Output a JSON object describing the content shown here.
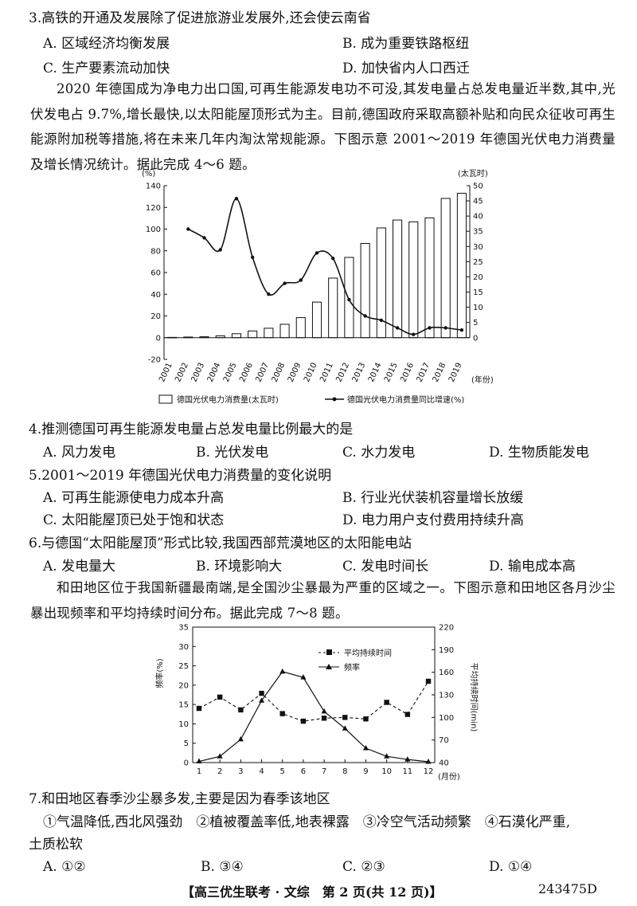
{
  "q3": {
    "stem": "3.高铁的开通及发展除了促进旅游业发展外,还会使云南省",
    "a": "A. 区域经济均衡发展",
    "b": "B. 成为重要铁路枢纽",
    "c": "C. 生产要素流动加快",
    "d": "D. 加快省内人口西迁"
  },
  "passage1": "2020 年德国成为净电力出口国,可再生能源发电功不可没,其发电量占总发电量近半数,其中,光伏发电占 9.7%,增长最快,以太阳能屋顶形式为主。目前,德国政府采取高额补贴和向民众征收可再生能源附加税等措施,将在未来几年内淘汰常规能源。下图示意 2001～2019 年德国光伏电力消费量及增长情况统计。据此完成 4～6 题。",
  "chart1": {
    "left_unit": "(%)",
    "right_unit": "(太瓦时)",
    "x_unit": "(年份)",
    "legend_bar": "德国光伏电力消费量(太瓦时)",
    "legend_line": "德国光伏电力消费量同比增速(%)"
  },
  "q4": {
    "stem": "4.推测德国可再生能源发电量占总发电量比例最大的是",
    "a": "A. 风力发电",
    "b": "B. 光伏发电",
    "c": "C. 水力发电",
    "d": "D. 生物质能发电"
  },
  "q5": {
    "stem": "5.2001～2019 年德国光伏电力消费量的变化说明",
    "a": "A. 可再生能源使电力成本升高",
    "b": "B. 行业光伏装机容量增长放缓",
    "c": "C. 太阳能屋顶已处于饱和状态",
    "d": "D. 电力用户支付费用持续升高"
  },
  "q6": {
    "stem": "6.与德国“太阳能屋顶”形式比较,我国西部荒漠地区的太阳能电站",
    "a": "A. 发电量大",
    "b": "B. 环境影响大",
    "c": "C. 发电时间长",
    "d": "D. 输电成本高"
  },
  "passage2": "和田地区位于我国新疆最南端,是全国沙尘暴最为严重的区域之一。下图示意和田地区各月沙尘暴出现频率和平均持续时间分布。据此完成 7～8 题。",
  "chart2": {
    "left_label": "频率(%)",
    "right_label": "平均持续时间(min)",
    "x_unit": "(月份)",
    "legend_duration": "平均持续时间",
    "legend_freq": "频率"
  },
  "q7": {
    "stem": "7.和田地区春季沙尘暴多发,主要是因为春季该地区",
    "options_line1": "①气温降低,西北风强劲　②植被覆盖率低,地表裸露　③冷空气活动频繁　④石漠化严重,",
    "options_line2": "土质松软",
    "a": "A. ①②",
    "b": "B. ③④",
    "c": "C. ②③",
    "d": "D. ①④"
  },
  "footer": {
    "center": "【高三优生联考 · 文综　第 2 页(共 12 页)】",
    "code": "243475D"
  },
  "chart_data": [
    {
      "type": "bar+line",
      "x": [
        "2001",
        "2002",
        "2003",
        "2004",
        "2005",
        "2006",
        "2007",
        "2008",
        "2009",
        "2010",
        "2011",
        "2012",
        "2013",
        "2014",
        "2015",
        "2016",
        "2017",
        "2018",
        "2019"
      ],
      "series": [
        {
          "name": "德国光伏电力消费量(太瓦时)",
          "type": "bar",
          "axis": "right",
          "values": [
            0.1,
            0.2,
            0.3,
            0.6,
            1.3,
            2.2,
            3.1,
            4.4,
            6.6,
            11.7,
            19.6,
            26.4,
            31.0,
            36.1,
            38.7,
            38.1,
            39.4,
            45.8,
            47.5
          ]
        },
        {
          "name": "德国光伏电力消费量同比增速(%)",
          "type": "line",
          "axis": "left",
          "values": [
            null,
            100,
            92,
            81,
            128,
            74,
            40,
            50,
            53,
            78,
            73,
            35,
            20,
            16,
            9,
            3,
            9,
            9,
            7
          ]
        }
      ],
      "left_axis": {
        "unit": "(%)",
        "ticks": [
          -20,
          0,
          20,
          40,
          60,
          80,
          100,
          120,
          140
        ],
        "range": [
          -20,
          140
        ]
      },
      "right_axis": {
        "unit": "(太瓦时)",
        "ticks": [
          0,
          5,
          10,
          15,
          20,
          25,
          30,
          35,
          40,
          45,
          50
        ],
        "range": [
          0,
          50
        ]
      },
      "legend": "bottom"
    },
    {
      "type": "line",
      "x": [
        1,
        2,
        3,
        4,
        5,
        6,
        7,
        8,
        9,
        10,
        11,
        12
      ],
      "series": [
        {
          "name": "平均持续时间",
          "axis": "right",
          "style": "dashed-square",
          "values": [
            112,
            127,
            110,
            132,
            105,
            95,
            99,
            100,
            98,
            120,
            104,
            148
          ]
        },
        {
          "name": "频率",
          "axis": "left",
          "style": "solid-triangle",
          "values": [
            0.3,
            1.6,
            6.0,
            16.0,
            23.5,
            22.0,
            13.2,
            8.8,
            3.7,
            1.6,
            0.8,
            0.2
          ]
        }
      ],
      "left_axis": {
        "label": "频率(%)",
        "ticks": [
          0,
          5,
          10,
          15,
          20,
          25,
          30,
          35
        ],
        "range": [
          0,
          35
        ]
      },
      "right_axis": {
        "label": "平均持续时间(min)",
        "ticks": [
          40,
          70,
          100,
          130,
          160,
          190,
          220
        ],
        "range": [
          40,
          220
        ]
      },
      "legend": "top-right"
    }
  ]
}
